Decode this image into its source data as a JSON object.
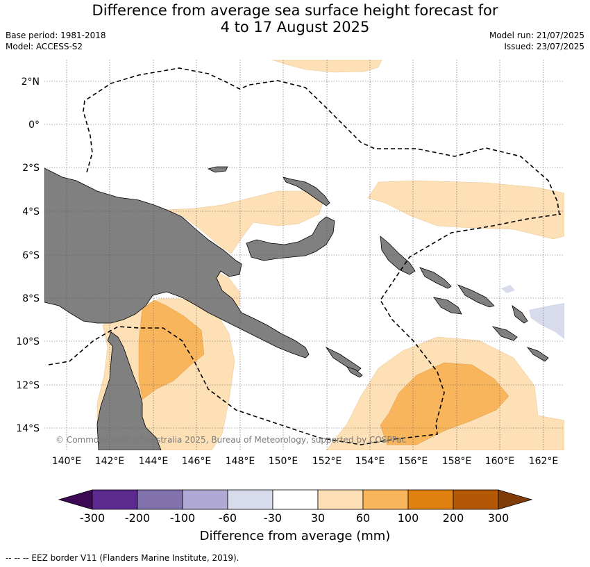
{
  "header": {
    "title_line1": "Difference from average sea surface height forecast for",
    "title_line2": "4 to 17 August 2025",
    "base_period": "Base period: 1981-2018",
    "model": "Model: ACCESS-S2",
    "model_run": "Model run: 21/07/2025",
    "issued": "Issued: 23/07/2025"
  },
  "map": {
    "lat_ticks": [
      "2°N",
      "0°",
      "2°S",
      "4°S",
      "6°S",
      "8°S",
      "10°S",
      "12°S",
      "14°S"
    ],
    "lon_ticks": [
      "140°E",
      "142°E",
      "144°E",
      "146°E",
      "148°E",
      "150°E",
      "152°E",
      "154°E",
      "156°E",
      "158°E",
      "160°E",
      "162°E"
    ],
    "copyright": "© Commonwealth of Australia 2025, Bureau of Meteorology, supported by COSPPac",
    "colors": {
      "land": "#808080",
      "pos_30_60": "#fde0b6",
      "pos_60_100": "#f9b55c",
      "neg_30_60": "#d8dbeb",
      "eez": "#000000"
    }
  },
  "colorbar": {
    "ticks": [
      "-300",
      "-200",
      "-100",
      "-60",
      "-30",
      "30",
      "60",
      "100",
      "200",
      "300"
    ],
    "colors": [
      "#3c0a55",
      "#5c2a8f",
      "#8171ad",
      "#b0a9d3",
      "#d8dbeb",
      "#ffffff",
      "#fde0b6",
      "#f9b55c",
      "#e0810f",
      "#b35806",
      "#7f3b08"
    ],
    "label": "Difference from average (mm)"
  },
  "legend": {
    "eez_line": "--  --  -- EEZ border V11 (Flanders Marine Institute, 2019)."
  }
}
